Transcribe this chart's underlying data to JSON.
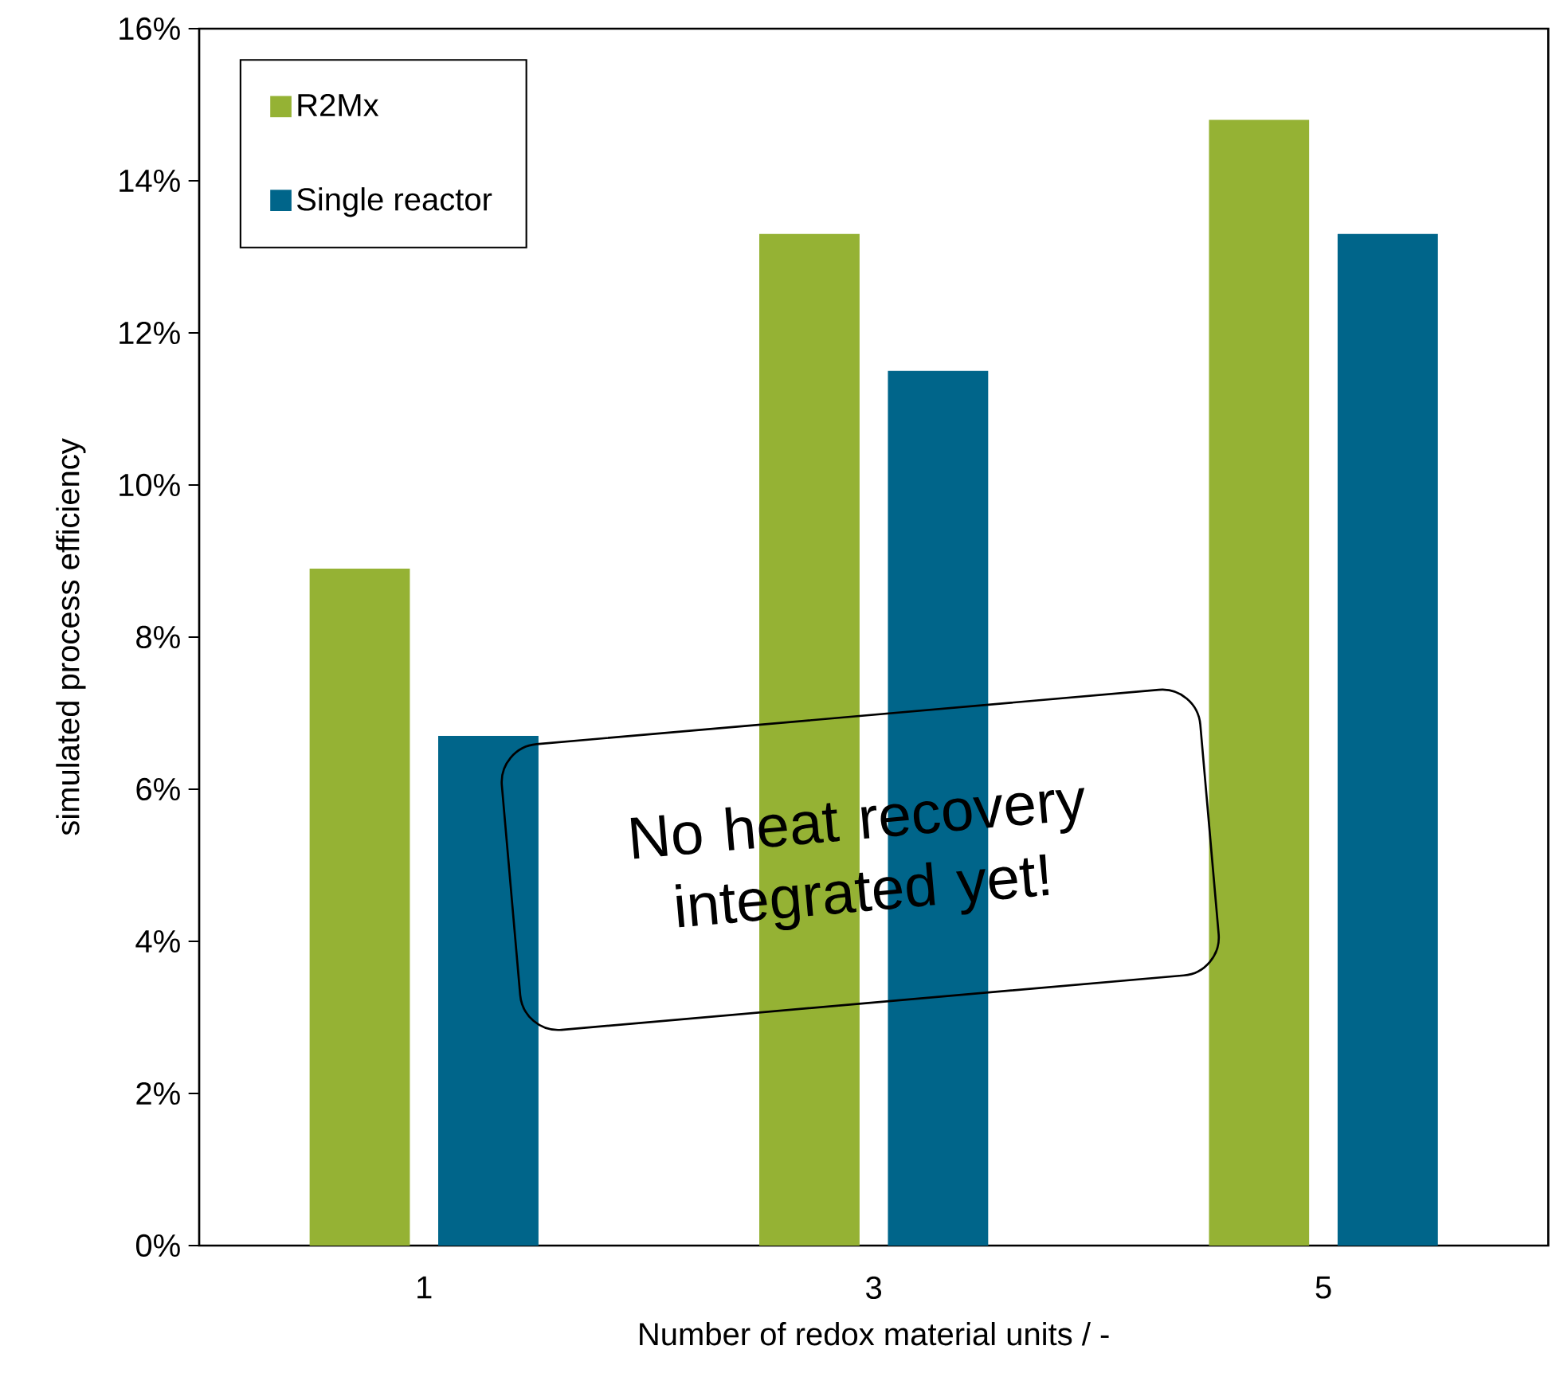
{
  "chart_data": {
    "type": "bar",
    "xlabel": "Number of redox material units / -",
    "ylabel": "simulated process efficiency",
    "categories": [
      "1",
      "3",
      "5"
    ],
    "series": [
      {
        "name": "R2Mx",
        "color": "#95b234",
        "values": [
          8.9,
          13.3,
          14.8
        ]
      },
      {
        "name": "Single reactor",
        "color": "#00658a",
        "values": [
          6.7,
          11.5,
          13.3
        ]
      }
    ],
    "ylim": [
      0,
      16
    ],
    "yticks": [
      {
        "value": 0,
        "label": "0%"
      },
      {
        "value": 2,
        "label": "2%"
      },
      {
        "value": 4,
        "label": "4%"
      },
      {
        "value": 6,
        "label": "6%"
      },
      {
        "value": 8,
        "label": "8%"
      },
      {
        "value": 10,
        "label": "10%"
      },
      {
        "value": 12,
        "label": "12%"
      },
      {
        "value": 14,
        "label": "14%"
      },
      {
        "value": 16,
        "label": "16%"
      }
    ],
    "legend": "top left",
    "grid": false,
    "annotations": [
      "No heat recovery integrated yet!"
    ]
  }
}
